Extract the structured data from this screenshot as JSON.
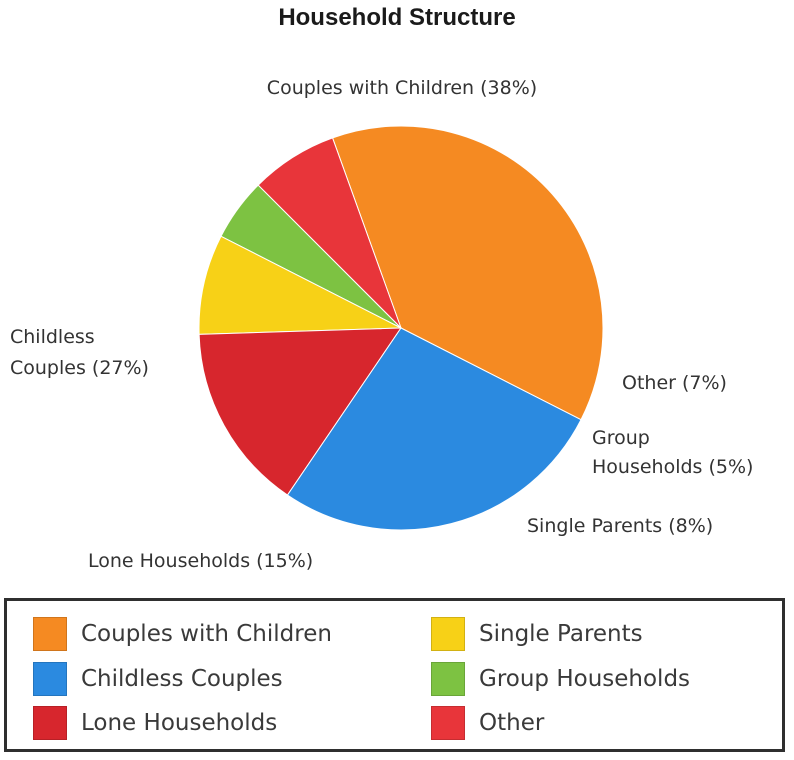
{
  "title": "Household Structure",
  "chart_data": {
    "type": "pie",
    "title": "Household Structure",
    "slices": [
      {
        "name": "Couples with Children",
        "value": 38,
        "label": "Couples with Children (38%)",
        "color": "#F58A22"
      },
      {
        "name": "Other",
        "value": 7,
        "label": "Other (7%)",
        "color": "#E8353A"
      },
      {
        "name": "Group Households",
        "value": 5,
        "label_lines": [
          "Group",
          "Households (5%)"
        ],
        "color": "#7DC242"
      },
      {
        "name": "Single Parents",
        "value": 8,
        "label": "Single Parents (8%)",
        "color": "#F7D117"
      },
      {
        "name": "Lone Households",
        "value": 15,
        "label": "Lone Households (15%)",
        "color": "#D7262D"
      },
      {
        "name": "Childless Couples",
        "value": 27,
        "label_lines": [
          "Childless",
          "Couples (27%)"
        ],
        "color": "#2B8AE0"
      }
    ],
    "legend": {
      "placement": "bottom",
      "items": [
        {
          "label": "Couples with Children",
          "color": "#F58A22"
        },
        {
          "label": "Childless Couples",
          "color": "#2B8AE0"
        },
        {
          "label": "Lone Households",
          "color": "#D7262D"
        },
        {
          "label": "Single Parents",
          "color": "#F7D117"
        },
        {
          "label": "Group Households",
          "color": "#7DC242"
        },
        {
          "label": "Other",
          "color": "#E8353A"
        }
      ]
    }
  }
}
